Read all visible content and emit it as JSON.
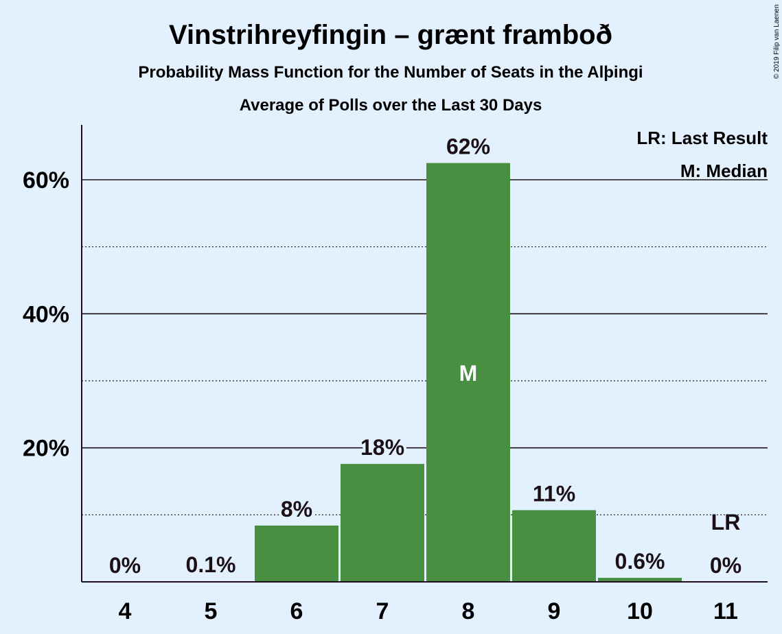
{
  "chart_data": {
    "type": "bar",
    "title": "Vinstrihreyfingin – grænt framboð",
    "subtitle": "Probability Mass Function for the Number of Seats in the Alþingi",
    "subtitle2": "Average of Polls over the Last 30 Days",
    "categories": [
      "4",
      "5",
      "6",
      "7",
      "8",
      "9",
      "10",
      "11"
    ],
    "values": [
      0,
      0.1,
      8.4,
      17.6,
      62.5,
      10.7,
      0.6,
      0
    ],
    "value_labels": [
      "0%",
      "0.1%",
      "8%",
      "18%",
      "62%",
      "11%",
      "0.6%",
      "0%"
    ],
    "ylim": [
      0,
      68
    ],
    "yticks": [
      20,
      40,
      60
    ],
    "ytick_labels": [
      "20%",
      "40%",
      "60%"
    ],
    "minor_gridlines": [
      10,
      30,
      50
    ],
    "median_index": 4,
    "median_marker": "M",
    "last_result_index": 7,
    "last_result_marker": "LR",
    "legend": [
      "LR: Last Result",
      "M: Median"
    ],
    "legend_position": "top-right",
    "bar_color": "#488f42",
    "credit": "© 2019 Filip van Laenen"
  }
}
